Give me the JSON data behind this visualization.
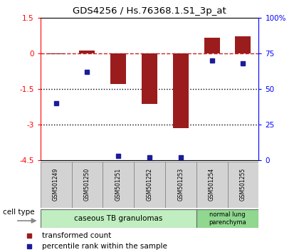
{
  "title": "GDS4256 / Hs.76368.1.S1_3p_at",
  "samples": [
    "GSM501249",
    "GSM501250",
    "GSM501251",
    "GSM501252",
    "GSM501253",
    "GSM501254",
    "GSM501255"
  ],
  "transformed_count": [
    -0.05,
    0.1,
    -1.3,
    -2.15,
    -3.15,
    0.65,
    0.7
  ],
  "percentile_rank": [
    40,
    62,
    3,
    2,
    2,
    70,
    68
  ],
  "ylim_left": [
    -4.5,
    1.5
  ],
  "ylim_right": [
    0,
    100
  ],
  "yticks_left": [
    1.5,
    0,
    -1.5,
    -3,
    -4.5
  ],
  "yticks_right": [
    100,
    75,
    50,
    25,
    0
  ],
  "ytick_labels_left": [
    "1.5",
    "0",
    "-1.5",
    "-3",
    "-4.5"
  ],
  "ytick_labels_right": [
    "100%",
    "75",
    "50",
    "25",
    "0"
  ],
  "hlines": [
    -1.5,
    -3.0
  ],
  "bar_color": "#9B1C1C",
  "dot_color": "#1C1C9B",
  "bar_width": 0.5,
  "group1_label": "caseous TB granulomas",
  "group1_samples": 5,
  "group1_color": "#c0eec0",
  "group2_label": "normal lung\nparenchyma",
  "group2_samples": 2,
  "group2_color": "#90d890",
  "legend_bar_label": "transformed count",
  "legend_dot_label": "percentile rank within the sample",
  "cell_type_label": "cell type",
  "bg_color": "#ffffff",
  "label_box_color": "#d3d3d3"
}
